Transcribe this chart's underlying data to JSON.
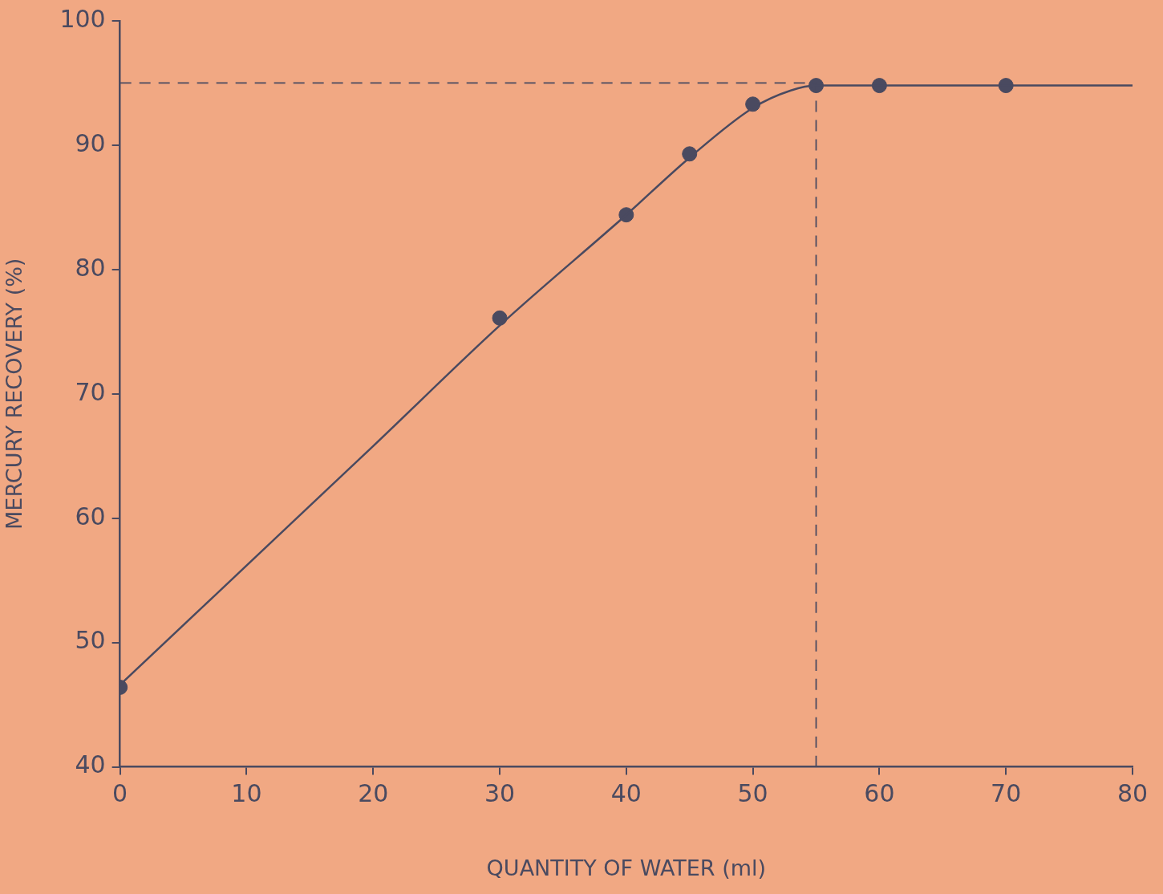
{
  "chart_data": {
    "type": "scatter",
    "xlabel": "QUANTITY OF WATER (ml)",
    "ylabel": "MERCURY RECOVERY (%)",
    "xlim": [
      0,
      80
    ],
    "ylim": [
      40,
      100
    ],
    "xticks": [
      0,
      10,
      20,
      30,
      40,
      50,
      60,
      70,
      80
    ],
    "yticks": [
      40,
      50,
      60,
      70,
      80,
      90,
      100
    ],
    "series": [
      {
        "type": "line",
        "color": "#4a4a60",
        "marker": "none",
        "line_style": "solid",
        "x": [
          0,
          10,
          20,
          30,
          40,
          45,
          50,
          53,
          55,
          80
        ],
        "values": [
          46.6,
          56.2,
          65.8,
          75.5,
          84.4,
          89.0,
          93.0,
          94.4,
          94.8,
          94.8
        ]
      },
      {
        "type": "line",
        "color": "#4a4a60",
        "marker": "none",
        "line_style": "dashed",
        "x": [
          0,
          55
        ],
        "values": [
          95,
          95
        ]
      },
      {
        "type": "line",
        "color": "#4a4a60",
        "marker": "none",
        "line_style": "dashed",
        "x": [
          55,
          55
        ],
        "values": [
          40,
          95
        ]
      },
      {
        "type": "scatter",
        "color": "#4a4a60",
        "marker": "circle",
        "x": [
          0,
          30,
          40,
          45,
          50,
          55,
          60,
          70
        ],
        "values": [
          46.4,
          76.1,
          84.4,
          89.3,
          93.3,
          94.8,
          94.8,
          94.8
        ]
      }
    ]
  }
}
